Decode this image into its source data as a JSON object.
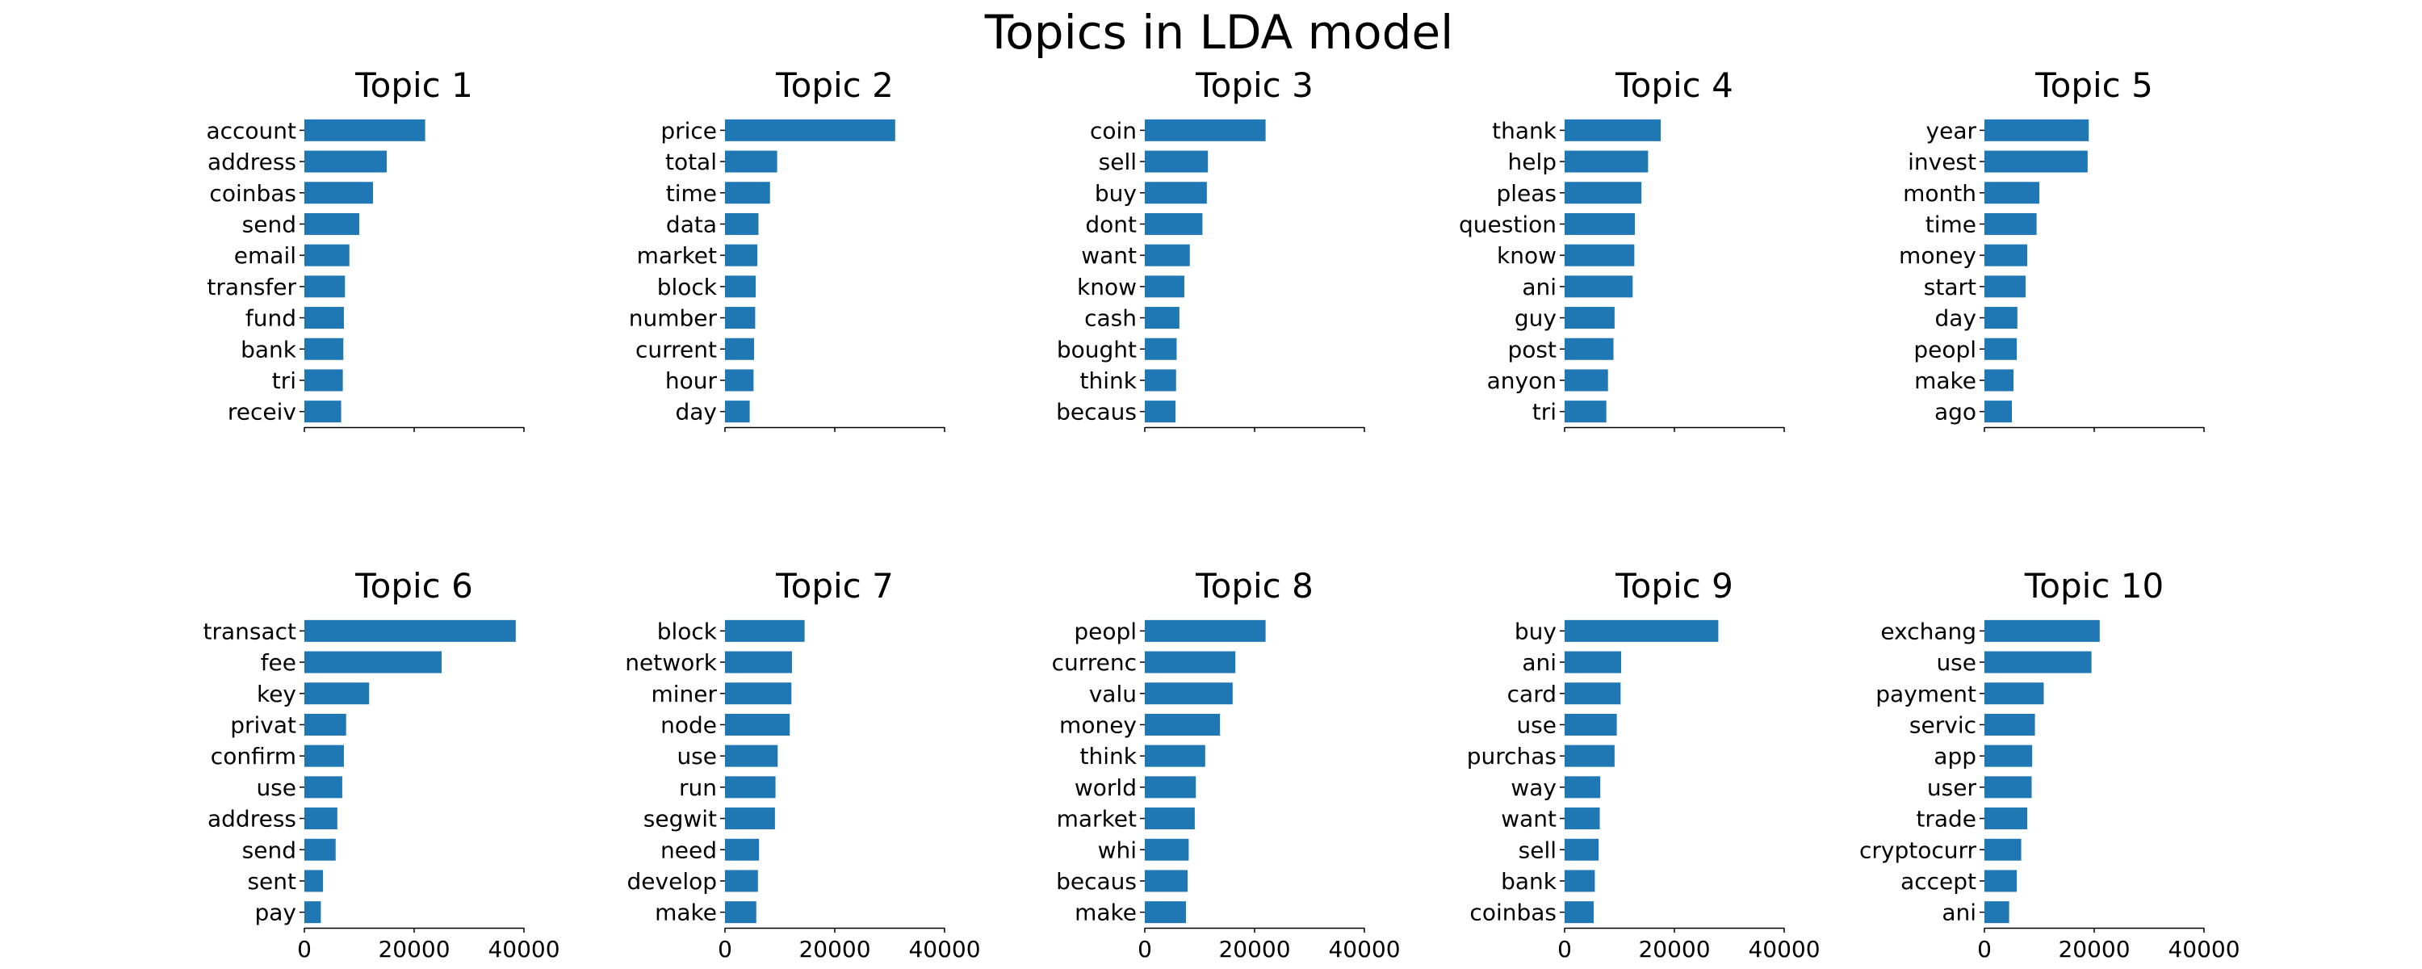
{
  "title": "Topics in LDA model",
  "bar_color": "#1f77b4",
  "chart_data": {
    "type": "bar",
    "orientation": "horizontal",
    "suptitle": "Topics in LDA model",
    "xlim": [
      0,
      40000
    ],
    "xticks": [
      0,
      20000,
      40000
    ],
    "xtick_labels": [
      "0",
      "20000",
      "40000"
    ],
    "grid": false,
    "legend": "none",
    "panels": [
      {
        "title": "Topic 1",
        "categories": [
          "account",
          "address",
          "coinbas",
          "send",
          "email",
          "transfer",
          "fund",
          "bank",
          "tri",
          "receiv"
        ],
        "values": [
          22000,
          15000,
          12500,
          10000,
          8200,
          7400,
          7200,
          7100,
          7000,
          6700
        ]
      },
      {
        "title": "Topic 2",
        "categories": [
          "price",
          "total",
          "time",
          "data",
          "market",
          "block",
          "number",
          "current",
          "hour",
          "day"
        ],
        "values": [
          31000,
          9500,
          8200,
          6100,
          5900,
          5600,
          5500,
          5300,
          5200,
          4500
        ]
      },
      {
        "title": "Topic 3",
        "categories": [
          "coin",
          "sell",
          "buy",
          "dont",
          "want",
          "know",
          "cash",
          "bought",
          "think",
          "becaus"
        ],
        "values": [
          22000,
          11500,
          11300,
          10500,
          8200,
          7200,
          6300,
          5800,
          5700,
          5600
        ]
      },
      {
        "title": "Topic 4",
        "categories": [
          "thank",
          "help",
          "pleas",
          "question",
          "know",
          "ani",
          "guy",
          "post",
          "anyon",
          "tri"
        ],
        "values": [
          17500,
          15200,
          14000,
          12800,
          12700,
          12400,
          9100,
          8900,
          7900,
          7600
        ]
      },
      {
        "title": "Topic 5",
        "categories": [
          "year",
          "invest",
          "month",
          "time",
          "money",
          "start",
          "day",
          "peopl",
          "make",
          "ago"
        ],
        "values": [
          19000,
          18800,
          10000,
          9500,
          7800,
          7500,
          6000,
          5900,
          5300,
          5000
        ]
      },
      {
        "title": "Topic 6",
        "categories": [
          "transact",
          "fee",
          "key",
          "privat",
          "confirm",
          "use",
          "address",
          "send",
          "sent",
          "pay"
        ],
        "values": [
          38500,
          25000,
          11800,
          7600,
          7200,
          6900,
          6000,
          5700,
          3400,
          3000
        ]
      },
      {
        "title": "Topic 7",
        "categories": [
          "block",
          "network",
          "miner",
          "node",
          "use",
          "run",
          "segwit",
          "need",
          "develop",
          "make"
        ],
        "values": [
          14500,
          12200,
          12100,
          11800,
          9600,
          9200,
          9100,
          6200,
          6000,
          5700
        ]
      },
      {
        "title": "Topic 8",
        "categories": [
          "peopl",
          "currenc",
          "valu",
          "money",
          "think",
          "world",
          "market",
          "whi",
          "becaus",
          "make"
        ],
        "values": [
          22000,
          16500,
          16000,
          13700,
          11000,
          9300,
          9100,
          8000,
          7800,
          7500
        ]
      },
      {
        "title": "Topic 9",
        "categories": [
          "buy",
          "ani",
          "card",
          "use",
          "purchas",
          "way",
          "want",
          "sell",
          "bank",
          "coinbas"
        ],
        "values": [
          28000,
          10300,
          10200,
          9500,
          9100,
          6500,
          6400,
          6200,
          5500,
          5300
        ]
      },
      {
        "title": "Topic 10",
        "categories": [
          "exchang",
          "use",
          "payment",
          "servic",
          "app",
          "user",
          "trade",
          "cryptocurr",
          "accept",
          "ani"
        ],
        "values": [
          21000,
          19500,
          10800,
          9200,
          8700,
          8600,
          7800,
          6700,
          5900,
          4500
        ]
      }
    ]
  }
}
